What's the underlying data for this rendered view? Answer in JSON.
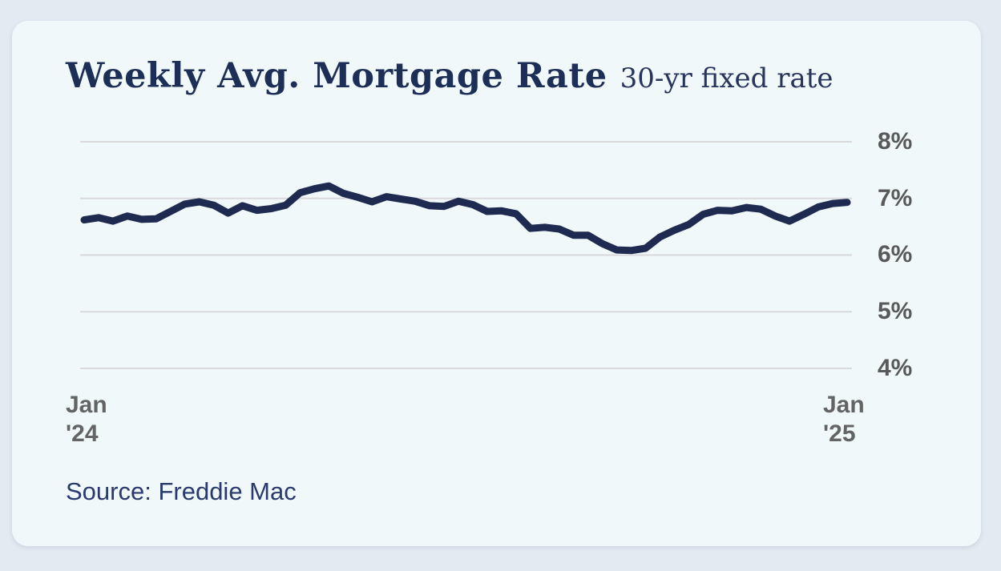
{
  "card": {
    "title": "Weekly Avg. Mortgage Rate",
    "subtitle": "30-yr fixed rate",
    "source": "Source: Freddie Mac"
  },
  "chart_data": {
    "type": "line",
    "title": "Weekly Avg. Mortgage Rate",
    "subtitle": "30-yr fixed rate",
    "source": "Source: Freddie Mac",
    "frequency": "weekly",
    "unit": "%",
    "x_range": [
      "Jan '24",
      "Jan '25"
    ],
    "x_tick_labels": [
      {
        "line1": "Jan",
        "line2": "'24"
      },
      {
        "line1": "Jan",
        "line2": "'25"
      }
    ],
    "y_ticks": [
      8,
      7,
      6,
      5,
      4
    ],
    "y_tick_labels": [
      "8%",
      "7%",
      "6%",
      "5%",
      "4%"
    ],
    "ylim": [
      3.7,
      8.25
    ],
    "grid": "horizontal",
    "legend": "none",
    "line_color": "#1e2a4f",
    "grid_color": "#d9d9d9",
    "values": [
      6.62,
      6.66,
      6.6,
      6.69,
      6.63,
      6.64,
      6.77,
      6.9,
      6.94,
      6.88,
      6.74,
      6.87,
      6.79,
      6.82,
      6.88,
      7.1,
      7.17,
      7.22,
      7.09,
      7.02,
      6.94,
      7.03,
      6.99,
      6.95,
      6.87,
      6.86,
      6.95,
      6.89,
      6.77,
      6.78,
      6.73,
      6.47,
      6.49,
      6.46,
      6.35,
      6.35,
      6.2,
      6.09,
      6.08,
      6.12,
      6.32,
      6.44,
      6.54,
      6.72,
      6.79,
      6.78,
      6.84,
      6.81,
      6.69,
      6.6,
      6.72,
      6.85,
      6.91,
      6.93
    ]
  },
  "colors": {
    "page_background": "#e3ebf2",
    "card_background": "#f0f8fa",
    "title_navy": "#1e2f57",
    "axis_label_gray": "#595959",
    "source_navy": "#2a3a6e"
  }
}
